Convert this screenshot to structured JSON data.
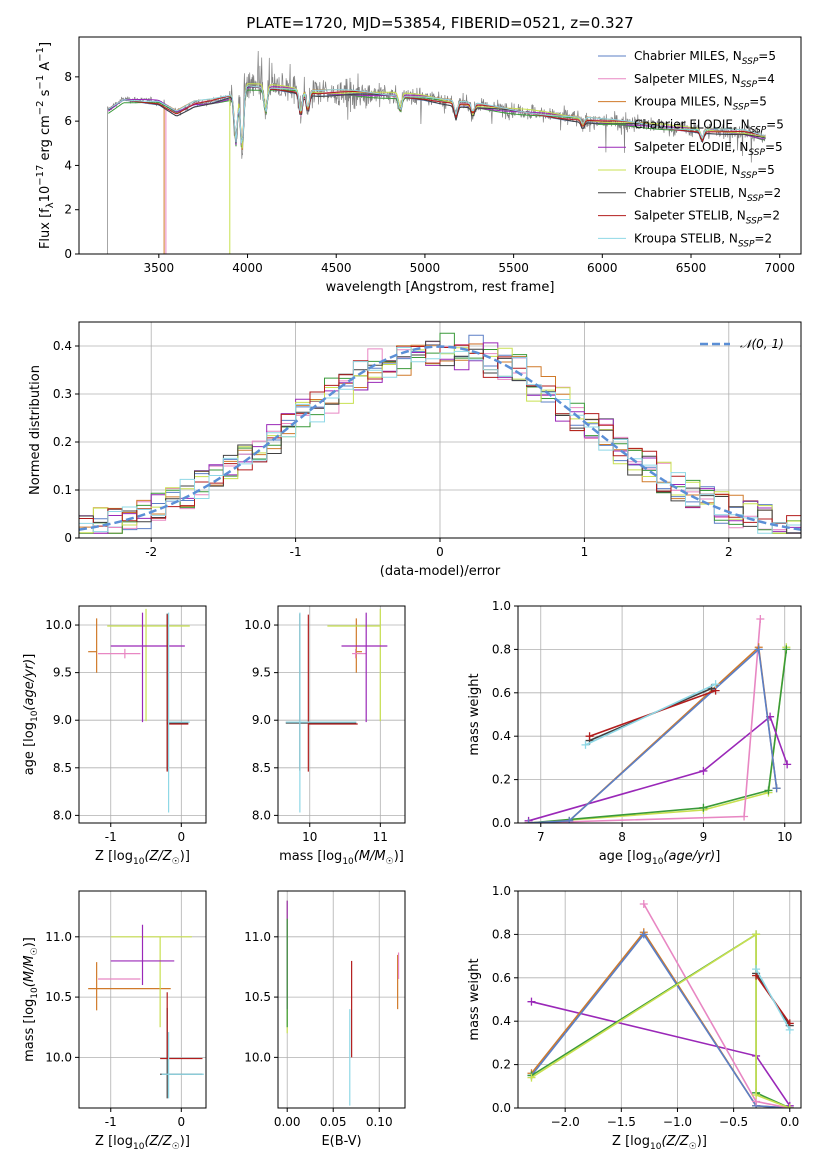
{
  "title": "PLATE=1720, MJD=53854, FIBERID=0521, z=0.327",
  "colors": {
    "Chabrier MILES": "#5b7fc6",
    "Salpeter MILES": "#e887c3",
    "Kroupa MILES": "#d07a2a",
    "Chabrier ELODIE": "#3a9a3a",
    "Salpeter ELODIE": "#9a28b8",
    "Kroupa ELODIE": "#c8e050",
    "Chabrier STELIB": "#404040",
    "Salpeter STELIB": "#b21d1d",
    "Kroupa STELIB": "#8fd8e6",
    "data": "#808080",
    "gauss": "#5b8fd6"
  },
  "chart_data": [
    {
      "id": "spectrum",
      "type": "line",
      "xlabel": "wavelength [Angstrom, rest frame]",
      "ylabel": "Flux [f_λ 10^-17 erg cm^-2 s^-1 A^-1]",
      "xlim": [
        3050,
        7120
      ],
      "ylim": [
        0,
        9.8
      ],
      "xticks": [
        3500,
        4000,
        4500,
        5000,
        5500,
        6000,
        6500,
        7000
      ],
      "yticks": [
        0,
        2,
        4,
        6,
        8
      ],
      "grid": false,
      "legend_position": "top-right",
      "legend": [
        {
          "model": "Chabrier MILES",
          "text": "Chabrier MILES, N",
          "sub": "SSP",
          "n": "=5"
        },
        {
          "model": "Salpeter MILES",
          "text": "Salpeter MILES, N",
          "sub": "SSP",
          "n": "=4"
        },
        {
          "model": "Kroupa MILES",
          "text": "Kroupa MILES, N",
          "sub": "SSP",
          "n": "=5"
        },
        {
          "model": "Chabrier ELODIE",
          "text": "Chabrier ELODIE, N",
          "sub": "SSP",
          "n": "=5"
        },
        {
          "model": "Salpeter ELODIE",
          "text": "Salpeter ELODIE, N",
          "sub": "SSP",
          "n": "=5"
        },
        {
          "model": "Kroupa ELODIE",
          "text": "Kroupa ELODIE, N",
          "sub": "SSP",
          "n": "=5"
        },
        {
          "model": "Chabrier STELIB",
          "text": "Chabrier STELIB, N",
          "sub": "SSP",
          "n": "=2"
        },
        {
          "model": "Salpeter STELIB",
          "text": "Salpeter STELIB, N",
          "sub": "SSP",
          "n": "=2"
        },
        {
          "model": "Kroupa STELIB",
          "text": "Kroupa STELIB, N",
          "sub": "SSP",
          "n": "=2"
        }
      ],
      "continuum": [
        [
          3210,
          6.5
        ],
        [
          3300,
          7.0
        ],
        [
          3500,
          6.9
        ],
        [
          3600,
          6.4
        ],
        [
          3700,
          6.8
        ],
        [
          3800,
          6.9
        ],
        [
          3900,
          7.1
        ],
        [
          4000,
          7.6
        ],
        [
          4200,
          7.5
        ],
        [
          4400,
          7.3
        ],
        [
          4600,
          7.3
        ],
        [
          4800,
          7.2
        ],
        [
          5000,
          7.1
        ],
        [
          5200,
          6.8
        ],
        [
          5400,
          6.6
        ],
        [
          5600,
          6.4
        ],
        [
          5800,
          6.2
        ],
        [
          6000,
          6.0
        ],
        [
          6200,
          5.9
        ],
        [
          6400,
          5.7
        ],
        [
          6600,
          5.6
        ],
        [
          6800,
          5.5
        ],
        [
          6900,
          5.3
        ]
      ],
      "absorption": [
        [
          3934,
          5.0
        ],
        [
          3969,
          4.7
        ],
        [
          4102,
          6.4
        ],
        [
          4300,
          6.3
        ],
        [
          4340,
          6.5
        ],
        [
          4861,
          6.5
        ],
        [
          5175,
          6.2
        ],
        [
          5270,
          6.3
        ],
        [
          5890,
          5.8
        ],
        [
          6563,
          5.2
        ]
      ],
      "model_starts": {
        "Kroupa MILES": 3530,
        "Salpeter MILES": 3540,
        "Kroupa ELODIE": 3900
      },
      "data_start": 3210
    },
    {
      "id": "residuals",
      "type": "histogram",
      "xlabel": "(data-model)/error",
      "ylabel": "Normed distribution",
      "xlim": [
        -2.5,
        2.5
      ],
      "ylim": [
        0,
        0.45
      ],
      "xticks": [
        -2,
        -1,
        0,
        1,
        2
      ],
      "yticks": [
        0,
        0.1,
        0.2,
        0.3,
        0.4
      ],
      "grid": true,
      "legend_position": "top-right",
      "legend_label": "𝒩(0, 1)",
      "bins": 50
    },
    {
      "id": "age-vs-Z",
      "type": "errorbar",
      "xlabel": "Z [log₁₀(Z/Z☉)]",
      "ylabel": "age  [log₁₀(age/yr)]",
      "xlim": [
        -1.45,
        0.35
      ],
      "ylim": [
        7.92,
        10.2
      ],
      "xticks": [
        -1,
        0
      ],
      "yticks": [
        8.0,
        8.5,
        9.0,
        9.5,
        10.0
      ],
      "grid": true,
      "points": [
        {
          "model": "Kroupa MILES",
          "x": -1.2,
          "y": 9.72,
          "xerr": [
            0.12,
            0.0
          ],
          "yerr": [
            0.22,
            0.35
          ]
        },
        {
          "model": "Salpeter MILES",
          "x": -0.8,
          "y": 9.7,
          "xerr": [
            0.38,
            0.22
          ],
          "yerr": [
            0.05,
            0.05
          ]
        },
        {
          "model": "Kroupa ELODIE",
          "x": -0.5,
          "y": 9.99,
          "xerr": [
            0.55,
            0.62
          ],
          "yerr": [
            1.0,
            0.18
          ]
        },
        {
          "model": "Salpeter ELODIE",
          "x": -0.55,
          "y": 9.78,
          "xerr": [
            0.45,
            0.6
          ],
          "yerr": [
            0.8,
            0.35
          ]
        },
        {
          "model": "Chabrier STELIB",
          "x": -0.2,
          "y": 8.97,
          "xerr": [
            0.0,
            0.3
          ],
          "yerr": [
            0.5,
            1.15
          ]
        },
        {
          "model": "Salpeter STELIB",
          "x": -0.2,
          "y": 8.96,
          "xerr": [
            0.0,
            0.3
          ],
          "yerr": [
            0.5,
            1.15
          ]
        },
        {
          "model": "Kroupa STELIB",
          "x": -0.18,
          "y": 8.98,
          "xerr": [
            0.0,
            0.3
          ],
          "yerr": [
            0.95,
            1.15
          ]
        }
      ]
    },
    {
      "id": "age-vs-mass",
      "type": "errorbar",
      "xlabel": "mass [log₁₀(M/M☉)]",
      "ylabel": "",
      "xlim": [
        9.55,
        11.35
      ],
      "ylim": [
        7.92,
        10.2
      ],
      "xticks": [
        10,
        11
      ],
      "yticks": [
        8.0,
        8.5,
        9.0,
        9.5,
        10.0
      ],
      "grid": true,
      "points": [
        {
          "model": "Kroupa MILES",
          "x": 10.66,
          "y": 9.72,
          "xerr": [
            0.0,
            0.08
          ],
          "yerr": [
            0.22,
            0.35
          ]
        },
        {
          "model": "Salpeter MILES",
          "x": 10.65,
          "y": 9.7,
          "xerr": [
            0.05,
            0.15
          ],
          "yerr": [
            0.05,
            0.05
          ]
        },
        {
          "model": "Kroupa ELODIE",
          "x": 11.0,
          "y": 9.99,
          "xerr": [
            0.75,
            0.0
          ],
          "yerr": [
            1.0,
            0.18
          ]
        },
        {
          "model": "Salpeter ELODIE",
          "x": 10.8,
          "y": 9.78,
          "xerr": [
            0.35,
            0.3
          ],
          "yerr": [
            0.8,
            0.35
          ]
        },
        {
          "model": "Chabrier STELIB",
          "x": 9.86,
          "y": 8.97,
          "xerr": [
            0.2,
            0.8
          ],
          "yerr": [
            0.5,
            1.15
          ]
        },
        {
          "model": "Salpeter STELIB",
          "x": 9.98,
          "y": 8.96,
          "xerr": [
            0.0,
            0.7
          ],
          "yerr": [
            0.5,
            1.15
          ]
        },
        {
          "model": "Kroupa STELIB",
          "x": 9.86,
          "y": 8.98,
          "xerr": [
            0.2,
            0.8
          ],
          "yerr": [
            0.95,
            1.15
          ]
        }
      ]
    },
    {
      "id": "weight-vs-age",
      "type": "line",
      "xlabel": "age  [log₁₀(age/yr)]",
      "ylabel": "mass weight",
      "xlim": [
        6.72,
        10.2
      ],
      "ylim": [
        0,
        1.0
      ],
      "xticks": [
        7,
        8,
        9,
        10
      ],
      "yticks": [
        0.0,
        0.2,
        0.4,
        0.6,
        0.8,
        1.0
      ],
      "grid": true,
      "series": [
        {
          "model": "Kroupa ELODIE",
          "x": [
            6.85,
            9.0,
            9.8,
            10.02
          ],
          "y": [
            0.0,
            0.06,
            0.14,
            0.81
          ]
        },
        {
          "model": "Chabrier ELODIE",
          "x": [
            6.85,
            9.0,
            9.8,
            10.02
          ],
          "y": [
            0.0,
            0.07,
            0.15,
            0.8
          ]
        },
        {
          "model": "Salpeter ELODIE",
          "x": [
            6.85,
            9.0,
            9.82,
            10.03
          ],
          "y": [
            0.01,
            0.24,
            0.49,
            0.27
          ]
        },
        {
          "model": "Salpeter MILES",
          "x": [
            6.85,
            9.5,
            9.7
          ],
          "y": [
            0.0,
            0.03,
            0.94
          ]
        },
        {
          "model": "Kroupa MILES",
          "x": [
            6.85,
            7.35,
            9.68,
            9.9
          ],
          "y": [
            0.0,
            0.01,
            0.81,
            0.16
          ]
        },
        {
          "model": "Chabrier MILES",
          "x": [
            6.85,
            7.35,
            9.68,
            9.9
          ],
          "y": [
            0.0,
            0.01,
            0.8,
            0.16
          ]
        },
        {
          "model": "Chabrier STELIB",
          "x": [
            7.6,
            9.1
          ],
          "y": [
            0.38,
            0.62
          ]
        },
        {
          "model": "Salpeter STELIB",
          "x": [
            7.6,
            9.15
          ],
          "y": [
            0.4,
            0.61
          ]
        },
        {
          "model": "Kroupa STELIB",
          "x": [
            7.55,
            9.15
          ],
          "y": [
            0.36,
            0.64
          ]
        }
      ]
    },
    {
      "id": "mass-vs-Z",
      "type": "errorbar",
      "xlabel": "Z [log₁₀(Z/Z☉)]",
      "ylabel": "mass [log₁₀(M/M☉)]",
      "xlim": [
        -1.45,
        0.35
      ],
      "ylim": [
        9.58,
        11.38
      ],
      "xticks": [
        -1,
        0
      ],
      "yticks": [
        10.0,
        10.5,
        11.0
      ],
      "grid": true,
      "points": [
        {
          "model": "Kroupa MILES",
          "x": -1.2,
          "y": 10.57,
          "xerr": [
            0.12,
            1.05
          ],
          "yerr": [
            0.18,
            0.22
          ]
        },
        {
          "model": "Salpeter MILES",
          "x": -0.8,
          "y": 10.65,
          "xerr": [
            0.38,
            0.22
          ],
          "yerr": [
            0.0,
            0.0
          ]
        },
        {
          "model": "Kroupa ELODIE",
          "x": -0.3,
          "y": 11.0,
          "xerr": [
            0.7,
            0.45
          ],
          "yerr": [
            0.75,
            0.0
          ]
        },
        {
          "model": "Salpeter ELODIE",
          "x": -0.55,
          "y": 10.8,
          "xerr": [
            0.45,
            0.45
          ],
          "yerr": [
            0.2,
            0.3
          ]
        },
        {
          "model": "Chabrier STELIB",
          "x": -0.2,
          "y": 9.86,
          "xerr": [
            0.1,
            0.5
          ],
          "yerr": [
            0.2,
            0.55
          ]
        },
        {
          "model": "Salpeter STELIB",
          "x": -0.2,
          "y": 9.99,
          "xerr": [
            0.1,
            0.5
          ],
          "yerr": [
            0.0,
            0.55
          ]
        },
        {
          "model": "Kroupa STELIB",
          "x": -0.18,
          "y": 9.86,
          "xerr": [
            0.1,
            0.5
          ],
          "yerr": [
            0.2,
            0.35
          ]
        }
      ]
    },
    {
      "id": "mass-vs-EBV",
      "type": "errorbar",
      "xlabel": "E(B-V)",
      "ylabel": "",
      "xlim": [
        -0.01,
        0.128
      ],
      "ylim": [
        9.58,
        11.38
      ],
      "xticks": [
        0.0,
        0.05,
        0.1
      ],
      "xticklabels": [
        "0.00",
        "0.05",
        "0.10"
      ],
      "yticks": [
        10.0,
        10.5,
        11.0
      ],
      "grid": true,
      "points": [
        {
          "model": "Kroupa ELODIE",
          "x": 0.0,
          "y": 10.7,
          "xerr": [
            0,
            0
          ],
          "yerr": [
            0.5,
            0.6
          ]
        },
        {
          "model": "Salpeter ELODIE",
          "x": 0.0,
          "y": 11.0,
          "xerr": [
            0,
            0
          ],
          "yerr": [
            0.6,
            0.3
          ]
        },
        {
          "model": "Chabrier ELODIE",
          "x": 0.0,
          "y": 10.75,
          "xerr": [
            0,
            0
          ],
          "yerr": [
            0.5,
            0.4
          ]
        },
        {
          "model": "Kroupa STELIB",
          "x": 0.068,
          "y": 9.9,
          "xerr": [
            0,
            0
          ],
          "yerr": [
            0.3,
            0.5
          ]
        },
        {
          "model": "Salpeter STELIB",
          "x": 0.07,
          "y": 10.3,
          "xerr": [
            0,
            0
          ],
          "yerr": [
            0.3,
            0.5
          ]
        },
        {
          "model": "Kroupa MILES",
          "x": 0.12,
          "y": 10.6,
          "xerr": [
            0,
            0
          ],
          "yerr": [
            0.2,
            0.25
          ]
        },
        {
          "model": "Salpeter MILES",
          "x": 0.121,
          "y": 10.65,
          "xerr": [
            0,
            0
          ],
          "yerr": [
            0.0,
            0.22
          ]
        }
      ]
    },
    {
      "id": "weight-vs-Z",
      "type": "line",
      "xlabel": "Z [log₁₀(Z/Z☉)]",
      "ylabel": "mass weight",
      "xlim": [
        -2.42,
        0.1
      ],
      "ylim": [
        0,
        1.0
      ],
      "xticks": [
        -2.0,
        -1.5,
        -1.0,
        -0.5,
        0.0
      ],
      "yticks": [
        0.0,
        0.2,
        0.4,
        0.6,
        0.8,
        1.0
      ],
      "grid": true,
      "series": [
        {
          "model": "Salpeter ELODIE",
          "x": [
            -2.3,
            -0.3,
            0.0
          ],
          "y": [
            0.49,
            0.24,
            0.01
          ]
        },
        {
          "model": "Kroupa MILES",
          "x": [
            -2.3,
            -1.3,
            -0.3,
            0.0
          ],
          "y": [
            0.16,
            0.81,
            0.01,
            0.0
          ]
        },
        {
          "model": "Chabrier MILES",
          "x": [
            -2.3,
            -1.3,
            -0.3,
            0.0
          ],
          "y": [
            0.15,
            0.8,
            0.01,
            0.0
          ]
        },
        {
          "model": "Salpeter MILES",
          "x": [
            -1.3,
            -0.3,
            0.0
          ],
          "y": [
            0.94,
            0.03,
            0.0
          ]
        },
        {
          "model": "Chabrier ELODIE",
          "x": [
            -2.3,
            -0.3,
            -0.3,
            0.0
          ],
          "y": [
            0.15,
            0.8,
            0.07,
            0.0
          ]
        },
        {
          "model": "Kroupa ELODIE",
          "x": [
            -2.3,
            -0.3,
            -0.3,
            0.0
          ],
          "y": [
            0.14,
            0.8,
            0.06,
            0.0
          ]
        },
        {
          "model": "Chabrier STELIB",
          "x": [
            -0.3,
            0.0
          ],
          "y": [
            0.62,
            0.38
          ]
        },
        {
          "model": "Salpeter STELIB",
          "x": [
            -0.3,
            0.0
          ],
          "y": [
            0.61,
            0.39
          ]
        },
        {
          "model": "Kroupa STELIB",
          "x": [
            -0.3,
            0.0
          ],
          "y": [
            0.64,
            0.36
          ]
        }
      ]
    }
  ]
}
